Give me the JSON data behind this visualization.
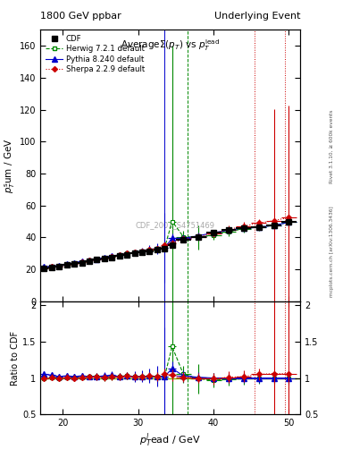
{
  "title_left": "1800 GeV ppbar",
  "title_right": "Underlying Event",
  "watermark": "CDF_2001_S4751469",
  "right_label_top": "Rivet 3.1.10, ≥ 600k events",
  "right_label_bot": "mcplots.cern.ch [arXiv:1306.3436]",
  "xlim": [
    17.0,
    51.5
  ],
  "ylim_main": [
    0,
    170
  ],
  "ylim_ratio": [
    0.5,
    2.05
  ],
  "yticks_main": [
    0,
    20,
    40,
    60,
    80,
    100,
    120,
    140,
    160
  ],
  "yticks_ratio": [
    0.5,
    1.0,
    1.5,
    2.0
  ],
  "cdf_x": [
    17.5,
    18.5,
    19.5,
    20.5,
    21.5,
    22.5,
    23.5,
    24.5,
    25.5,
    26.5,
    27.5,
    28.5,
    29.5,
    30.5,
    31.5,
    32.5,
    33.5,
    34.5,
    36.0,
    38.0,
    40.0,
    42.0,
    44.0,
    46.0,
    48.0,
    50.0
  ],
  "cdf_y": [
    20.5,
    21.2,
    22.0,
    22.8,
    23.5,
    24.2,
    25.0,
    26.0,
    26.8,
    27.5,
    28.4,
    29.2,
    30.0,
    30.8,
    31.5,
    32.2,
    33.0,
    35.0,
    38.5,
    40.5,
    43.0,
    44.5,
    46.0,
    46.5,
    47.5,
    49.5
  ],
  "cdf_ey": [
    0.8,
    0.8,
    0.8,
    0.8,
    0.8,
    0.8,
    0.8,
    0.8,
    0.8,
    0.8,
    0.8,
    0.8,
    0.8,
    0.8,
    0.8,
    0.8,
    1.0,
    1.2,
    1.5,
    1.5,
    1.5,
    1.5,
    1.5,
    1.5,
    1.5,
    2.0
  ],
  "cdf_ex": [
    0.5,
    0.5,
    0.5,
    0.5,
    0.5,
    0.5,
    0.5,
    0.5,
    0.5,
    0.5,
    0.5,
    0.5,
    0.5,
    0.5,
    0.5,
    0.5,
    0.5,
    0.5,
    1.0,
    1.0,
    1.0,
    1.0,
    1.0,
    1.0,
    1.0,
    1.0
  ],
  "herwig_x": [
    17.5,
    18.5,
    19.5,
    20.5,
    21.5,
    22.5,
    23.5,
    24.5,
    25.5,
    26.5,
    27.5,
    28.5,
    29.5,
    30.5,
    31.5,
    32.5,
    33.5,
    34.5,
    36.0,
    38.0,
    40.0,
    42.0,
    44.0,
    46.0,
    48.0,
    50.0
  ],
  "herwig_y": [
    20.5,
    21.5,
    22.0,
    23.0,
    23.8,
    24.5,
    25.5,
    26.5,
    27.0,
    28.0,
    29.0,
    30.0,
    30.5,
    31.5,
    32.0,
    33.0,
    33.5,
    50.0,
    40.5,
    40.0,
    41.5,
    43.5,
    45.5,
    46.5,
    47.5,
    49.5
  ],
  "herwig_ey": [
    0.8,
    0.8,
    0.8,
    0.8,
    0.8,
    0.8,
    0.8,
    0.8,
    0.8,
    0.8,
    0.8,
    0.8,
    0.8,
    0.8,
    0.8,
    0.8,
    1.0,
    110.0,
    3.5,
    7.5,
    3.0,
    2.5,
    2.5,
    2.5,
    2.5,
    3.0
  ],
  "herwig_ex": [
    0.5,
    0.5,
    0.5,
    0.5,
    0.5,
    0.5,
    0.5,
    0.5,
    0.5,
    0.5,
    0.5,
    0.5,
    0.5,
    0.5,
    0.5,
    0.5,
    0.5,
    0.5,
    1.0,
    1.0,
    1.0,
    1.0,
    1.0,
    1.0,
    1.0,
    1.0
  ],
  "herwig_vline_x": 36.5,
  "pythia_x": [
    17.5,
    18.5,
    19.5,
    20.5,
    21.5,
    22.5,
    23.5,
    24.5,
    25.5,
    26.5,
    27.5,
    28.5,
    29.5,
    30.5,
    31.5,
    32.5,
    33.5,
    34.5,
    36.0,
    38.0,
    40.0,
    42.0,
    44.0,
    46.0,
    48.0,
    50.0
  ],
  "pythia_y": [
    21.5,
    22.0,
    22.5,
    23.5,
    24.0,
    25.0,
    25.5,
    26.5,
    27.5,
    28.5,
    29.0,
    30.0,
    30.5,
    31.5,
    32.5,
    33.0,
    33.5,
    39.5,
    39.5,
    41.0,
    43.0,
    44.5,
    46.0,
    46.5,
    47.5,
    49.5
  ],
  "pythia_ey": [
    0.8,
    0.8,
    0.8,
    0.8,
    0.8,
    0.8,
    0.8,
    0.8,
    0.8,
    0.8,
    0.8,
    0.8,
    1.5,
    2.0,
    2.5,
    3.5,
    22.0,
    3.0,
    2.0,
    2.0,
    2.0,
    2.0,
    2.0,
    2.0,
    2.0,
    2.5
  ],
  "pythia_ex": [
    0.5,
    0.5,
    0.5,
    0.5,
    0.5,
    0.5,
    0.5,
    0.5,
    0.5,
    0.5,
    0.5,
    0.5,
    0.5,
    0.5,
    0.5,
    0.5,
    0.5,
    0.5,
    1.0,
    1.0,
    1.0,
    1.0,
    1.0,
    1.0,
    1.0,
    1.0
  ],
  "pythia_vline_x": 33.5,
  "sherpa_x": [
    17.5,
    18.5,
    19.5,
    20.5,
    21.5,
    22.5,
    23.5,
    24.5,
    25.5,
    26.5,
    27.5,
    28.5,
    29.5,
    30.5,
    31.5,
    32.5,
    33.5,
    34.5,
    36.0,
    38.0,
    40.0,
    42.0,
    44.0,
    46.0,
    48.0,
    50.0
  ],
  "sherpa_y": [
    20.5,
    21.5,
    22.0,
    23.0,
    23.5,
    24.5,
    25.5,
    26.5,
    27.0,
    28.0,
    29.0,
    30.0,
    30.5,
    31.5,
    32.5,
    33.0,
    35.0,
    36.5,
    39.0,
    40.5,
    42.5,
    45.0,
    47.0,
    49.0,
    50.5,
    52.5
  ],
  "sherpa_ey": [
    0.8,
    0.8,
    0.8,
    0.8,
    0.8,
    0.8,
    0.8,
    0.8,
    0.8,
    0.8,
    0.8,
    0.8,
    0.8,
    0.8,
    0.8,
    1.0,
    1.5,
    2.0,
    2.0,
    2.0,
    2.5,
    2.5,
    2.5,
    2.5,
    70.0,
    70.0
  ],
  "sherpa_ex": [
    0.5,
    0.5,
    0.5,
    0.5,
    0.5,
    0.5,
    0.5,
    0.5,
    0.5,
    0.5,
    0.5,
    0.5,
    0.5,
    0.5,
    0.5,
    0.5,
    0.5,
    0.5,
    1.0,
    1.0,
    1.0,
    1.0,
    1.0,
    1.0,
    1.0,
    1.0
  ],
  "sherpa_vline_x1": 45.5,
  "sherpa_vline_x2": 49.5,
  "color_cdf": "#000000",
  "color_herwig": "#008800",
  "color_pythia": "#0000cc",
  "color_sherpa": "#cc0000",
  "herwig_ratio_y": [
    1.0,
    1.01,
    1.0,
    1.01,
    1.01,
    1.01,
    1.02,
    1.02,
    1.01,
    1.02,
    1.02,
    1.03,
    1.02,
    1.02,
    1.02,
    1.02,
    1.02,
    1.43,
    1.05,
    0.99,
    0.97,
    0.98,
    0.99,
    1.0,
    1.0,
    1.0
  ],
  "herwig_ratio_ey": [
    0.04,
    0.04,
    0.04,
    0.04,
    0.04,
    0.04,
    0.04,
    0.05,
    0.05,
    0.05,
    0.05,
    0.05,
    0.05,
    0.05,
    0.06,
    0.06,
    0.07,
    3.2,
    0.12,
    0.2,
    0.1,
    0.08,
    0.08,
    0.08,
    0.08,
    0.09
  ],
  "pythia_ratio_y": [
    1.05,
    1.04,
    1.02,
    1.03,
    1.02,
    1.03,
    1.02,
    1.02,
    1.03,
    1.04,
    1.02,
    1.03,
    1.02,
    1.02,
    1.03,
    1.02,
    1.02,
    1.13,
    1.03,
    1.01,
    1.0,
    1.0,
    1.0,
    1.0,
    1.0,
    1.0
  ],
  "pythia_ratio_ey": [
    0.04,
    0.04,
    0.04,
    0.04,
    0.04,
    0.04,
    0.04,
    0.05,
    0.05,
    0.05,
    0.05,
    0.05,
    0.07,
    0.08,
    0.1,
    0.14,
    0.67,
    0.1,
    0.08,
    0.07,
    0.07,
    0.07,
    0.07,
    0.07,
    0.07,
    0.08
  ],
  "sherpa_ratio_y": [
    1.0,
    1.01,
    1.0,
    1.01,
    1.0,
    1.01,
    1.02,
    1.02,
    1.01,
    1.02,
    1.02,
    1.03,
    1.02,
    1.02,
    1.03,
    1.02,
    1.06,
    1.04,
    1.01,
    1.0,
    0.99,
    1.01,
    1.02,
    1.05,
    1.06,
    1.06
  ],
  "sherpa_ratio_ey": [
    0.04,
    0.04,
    0.04,
    0.04,
    0.04,
    0.04,
    0.04,
    0.05,
    0.05,
    0.05,
    0.05,
    0.05,
    0.05,
    0.05,
    0.05,
    0.06,
    0.07,
    0.08,
    0.07,
    0.07,
    0.08,
    0.08,
    0.08,
    0.08,
    1.5,
    1.5
  ]
}
